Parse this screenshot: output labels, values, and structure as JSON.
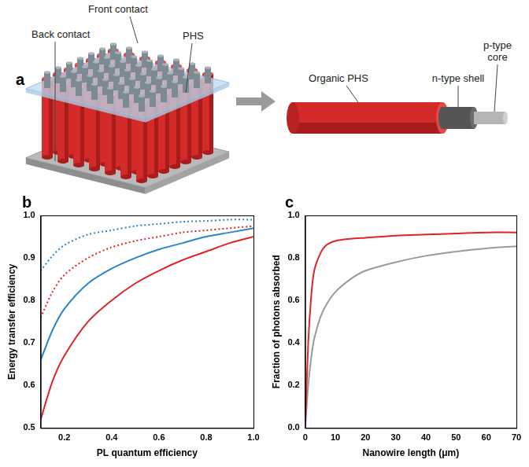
{
  "panel_a": {
    "panel": "a",
    "labels": {
      "front_contact": "Front contact",
      "back_contact": "Back contact",
      "phs": "PHS",
      "organic_phs": "Organic PHS",
      "shell": "n-type shell",
      "core": [
        "p-type",
        "core"
      ]
    }
  },
  "chart_data": [
    {
      "panel": "b",
      "type": "line",
      "x_label": "PL quantum efficiency",
      "y_label": "Energy transfer efficiency",
      "x": [
        0.1,
        0.15,
        0.2,
        0.3,
        0.4,
        0.5,
        0.6,
        0.7,
        0.8,
        0.9,
        1.0
      ],
      "series": [
        {
          "color": "#e0242b",
          "line_style": "solid",
          "values": [
            0.52,
            0.61,
            0.67,
            0.75,
            0.8,
            0.84,
            0.87,
            0.895,
            0.915,
            0.935,
            0.95
          ]
        },
        {
          "color": "#2a86c8",
          "line_style": "solid",
          "values": [
            0.66,
            0.73,
            0.78,
            0.84,
            0.875,
            0.9,
            0.92,
            0.935,
            0.95,
            0.96,
            0.97
          ]
        },
        {
          "color": "#e0242b",
          "line_style": "dotted",
          "values": [
            0.76,
            0.82,
            0.86,
            0.9,
            0.925,
            0.94,
            0.95,
            0.96,
            0.965,
            0.97,
            0.975
          ]
        },
        {
          "color": "#2a86c8",
          "line_style": "dotted",
          "values": [
            0.87,
            0.905,
            0.93,
            0.955,
            0.965,
            0.975,
            0.98,
            0.985,
            0.987,
            0.99,
            0.99
          ]
        }
      ],
      "xlim": [
        0.1,
        1.0
      ],
      "xticks": [
        0.2,
        0.4,
        0.6,
        0.8,
        {
          "value": 1.0,
          "label": "1.0"
        }
      ],
      "ylim": [
        0.5,
        1.0
      ],
      "yticks": [
        0.5,
        0.6,
        0.7,
        0.8,
        0.9,
        {
          "value": 1.0,
          "label": "1.0"
        }
      ],
      "grid": false
    },
    {
      "panel": "c",
      "type": "line",
      "x_label": "Nanowire length (μm)",
      "y_label": "Fraction of photons absorbed",
      "x": [
        0,
        1,
        2,
        3,
        5,
        7,
        10,
        15,
        20,
        30,
        40,
        50,
        60,
        70
      ],
      "series": [
        {
          "color": "#e0242b",
          "line_style": "solid",
          "values": [
            0,
            0.4,
            0.62,
            0.74,
            0.82,
            0.86,
            0.88,
            0.89,
            0.895,
            0.905,
            0.91,
            0.915,
            0.92,
            0.92
          ]
        },
        {
          "color": "#9a9a9a",
          "line_style": "solid",
          "values": [
            0,
            0.2,
            0.33,
            0.42,
            0.52,
            0.58,
            0.64,
            0.7,
            0.74,
            0.78,
            0.81,
            0.83,
            0.845,
            0.855
          ]
        }
      ],
      "xlim": [
        0,
        70
      ],
      "xticks": [
        0,
        10,
        20,
        30,
        40,
        50,
        60,
        70
      ],
      "ylim": [
        0,
        1.0
      ],
      "yticks": [
        {
          "value": 0,
          "label": "0.0"
        },
        0.2,
        0.4,
        0.6,
        0.8,
        {
          "value": 1.0,
          "label": "1.0"
        }
      ],
      "grid": false
    }
  ]
}
